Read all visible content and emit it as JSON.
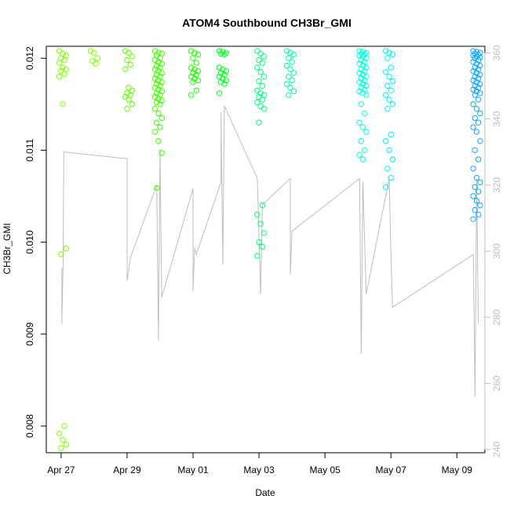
{
  "chart_data": {
    "type": "scatter",
    "title": "ATOM4 Southbound CH3Br_GMI",
    "xlabel": "Date",
    "ylabel": "CH3Br_GMI",
    "x_ticks": [
      "Apr 27",
      "Apr 29",
      "May 01",
      "May 03",
      "May 05",
      "May 07",
      "May 09"
    ],
    "x_tick_days": [
      27,
      29,
      31,
      33,
      35,
      37,
      39
    ],
    "xlim": [
      26.55,
      39.85
    ],
    "ylim": [
      0.00771,
      0.01213
    ],
    "y_ticks": [
      0.008,
      0.009,
      0.01,
      0.011,
      0.012
    ],
    "y_tick_labels": [
      "0.008",
      "0.009",
      "0.010",
      "0.011",
      "0.012"
    ],
    "y2_label": "",
    "y2lim": [
      239,
      362
    ],
    "y2_ticks": [
      240,
      260,
      280,
      300,
      320,
      340,
      360
    ],
    "y2_tick_labels": [
      "240",
      "260",
      "280",
      "300",
      "320",
      "340",
      "360"
    ],
    "colors": {
      "frame": "#000000",
      "secondary_axis": "#bebebe",
      "line_series": "#bebebe"
    },
    "point_clusters": [
      {
        "day": 27.05,
        "color": "#7fff00",
        "values": [
          0.01208,
          0.01205,
          0.01203,
          0.012,
          0.01198,
          0.01195,
          0.0119,
          0.01188,
          0.01186,
          0.01183,
          0.0118,
          0.0115,
          0.00993,
          0.00987,
          0.008,
          0.00792,
          0.00785,
          0.0078,
          0.00776
        ]
      },
      {
        "day": 28.0,
        "color": "#7fff00",
        "values": [
          0.01208,
          0.01206,
          0.012,
          0.01197,
          0.01194
        ]
      },
      {
        "day": 29.05,
        "color": "#5fff00",
        "values": [
          0.01208,
          0.01206,
          0.01202,
          0.01198,
          0.01193,
          0.01188,
          0.01168,
          0.01165,
          0.01162,
          0.0116,
          0.01158,
          0.01155,
          0.0115,
          0.01145
        ]
      },
      {
        "day": 29.95,
        "color": "#3fff00",
        "values": [
          0.01208,
          0.01206,
          0.01205,
          0.01203,
          0.012,
          0.01198,
          0.01196,
          0.01194,
          0.01192,
          0.0119,
          0.01188,
          0.01186,
          0.01184,
          0.01182,
          0.0118,
          0.01178,
          0.01176,
          0.01174,
          0.01172,
          0.0117,
          0.01168,
          0.01166,
          0.01164,
          0.01162,
          0.0116,
          0.01158,
          0.01156,
          0.01154,
          0.01152,
          0.0115,
          0.01145,
          0.0114,
          0.01135,
          0.0113,
          0.01125,
          0.0112,
          0.0111,
          0.01097,
          0.01059
        ]
      },
      {
        "day": 31.05,
        "color": "#1fff00",
        "values": [
          0.01208,
          0.01206,
          0.01204,
          0.012,
          0.01195,
          0.0119,
          0.01188,
          0.01186,
          0.01184,
          0.01182,
          0.0118,
          0.01178,
          0.01176,
          0.01174,
          0.01165,
          0.0116
        ]
      },
      {
        "day": 31.9,
        "color": "#00ff20",
        "values": [
          0.01208,
          0.01207,
          0.01206,
          0.01205,
          0.01204,
          0.0119,
          0.01188,
          0.01186,
          0.01184,
          0.01182,
          0.0118,
          0.01178,
          0.01176,
          0.01174,
          0.01172,
          0.01162
        ]
      },
      {
        "day": 33.05,
        "color": "#00ff7f",
        "values": [
          0.01208,
          0.01205,
          0.01202,
          0.01198,
          0.01195,
          0.0119,
          0.01185,
          0.0118,
          0.01175,
          0.0117,
          0.01165,
          0.01162,
          0.0116,
          0.01158,
          0.01155,
          0.01152,
          0.01148,
          0.01145,
          0.0113,
          0.0104,
          0.0103,
          0.0102,
          0.0101,
          0.01,
          0.00995,
          0.00985
        ]
      },
      {
        "day": 33.95,
        "color": "#00ffa0",
        "values": [
          0.01208,
          0.01206,
          0.01204,
          0.012,
          0.01196,
          0.01192,
          0.01188,
          0.01184,
          0.0118,
          0.01176,
          0.01172,
          0.01168,
          0.01164,
          0.0116
        ]
      },
      {
        "day": 36.15,
        "color": "#00ffe0",
        "values": [
          0.01208,
          0.01207,
          0.01206,
          0.01205,
          0.01204,
          0.01203,
          0.01202,
          0.012,
          0.01198,
          0.01196,
          0.01194,
          0.01192,
          0.0119,
          0.01188,
          0.01186,
          0.01184,
          0.01182,
          0.0118,
          0.01178,
          0.01176,
          0.01174,
          0.01172,
          0.0117,
          0.01168,
          0.01166,
          0.01164,
          0.01162,
          0.0116,
          0.0115,
          0.0114,
          0.0113,
          0.01125,
          0.0112,
          0.0111,
          0.011,
          0.01095,
          0.0109
        ]
      },
      {
        "day": 36.95,
        "color": "#00f0ff",
        "values": [
          0.01208,
          0.01206,
          0.01204,
          0.012,
          0.0119,
          0.01185,
          0.0118,
          0.01175,
          0.0117,
          0.01165,
          0.0116,
          0.01155,
          0.0115,
          0.01145,
          0.01117,
          0.0111,
          0.011,
          0.0109,
          0.0108,
          0.0107,
          0.0106
        ]
      },
      {
        "day": 39.6,
        "color": "#10a8ff",
        "values": [
          0.01208,
          0.01207,
          0.01206,
          0.01205,
          0.01204,
          0.01203,
          0.01202,
          0.01201,
          0.012,
          0.01198,
          0.01196,
          0.01194,
          0.01192,
          0.0119,
          0.01188,
          0.01186,
          0.01184,
          0.01182,
          0.0118,
          0.01178,
          0.01176,
          0.01174,
          0.01172,
          0.0117,
          0.01168,
          0.01166,
          0.01164,
          0.01162,
          0.0116,
          0.01155,
          0.0115,
          0.01145,
          0.0114,
          0.01135,
          0.0113,
          0.01125,
          0.0112,
          0.0111,
          0.011,
          0.0109,
          0.0108,
          0.0107,
          0.01065,
          0.0106,
          0.01055,
          0.0105,
          0.01045,
          0.0104,
          0.01035,
          0.0103,
          0.01025
        ]
      }
    ],
    "line_series_y2": [
      {
        "x": 27.02,
        "y": 295
      },
      {
        "x": 27.02,
        "y": 278
      },
      {
        "x": 27.06,
        "y": 296
      },
      {
        "x": 27.08,
        "y": 330
      },
      {
        "x": 29.0,
        "y": 328
      },
      {
        "x": 29.0,
        "y": 291
      },
      {
        "x": 29.1,
        "y": 298
      },
      {
        "x": 29.9,
        "y": 320
      },
      {
        "x": 29.95,
        "y": 273
      },
      {
        "x": 30.0,
        "y": 331
      },
      {
        "x": 30.05,
        "y": 286
      },
      {
        "x": 31.0,
        "y": 319
      },
      {
        "x": 31.0,
        "y": 288
      },
      {
        "x": 31.05,
        "y": 301
      },
      {
        "x": 31.1,
        "y": 299
      },
      {
        "x": 31.85,
        "y": 321
      },
      {
        "x": 31.85,
        "y": 342
      },
      {
        "x": 31.9,
        "y": 296
      },
      {
        "x": 31.95,
        "y": 344
      },
      {
        "x": 32.95,
        "y": 322
      },
      {
        "x": 33.05,
        "y": 287
      },
      {
        "x": 33.1,
        "y": 314
      },
      {
        "x": 33.95,
        "y": 322
      },
      {
        "x": 33.95,
        "y": 293
      },
      {
        "x": 34.0,
        "y": 306
      },
      {
        "x": 36.05,
        "y": 322
      },
      {
        "x": 36.1,
        "y": 269
      },
      {
        "x": 36.15,
        "y": 321
      },
      {
        "x": 36.25,
        "y": 287
      },
      {
        "x": 36.95,
        "y": 322
      },
      {
        "x": 37.0,
        "y": 299
      },
      {
        "x": 37.05,
        "y": 283
      },
      {
        "x": 39.5,
        "y": 299
      },
      {
        "x": 39.55,
        "y": 256
      },
      {
        "x": 39.6,
        "y": 322
      },
      {
        "x": 39.65,
        "y": 278
      }
    ]
  }
}
